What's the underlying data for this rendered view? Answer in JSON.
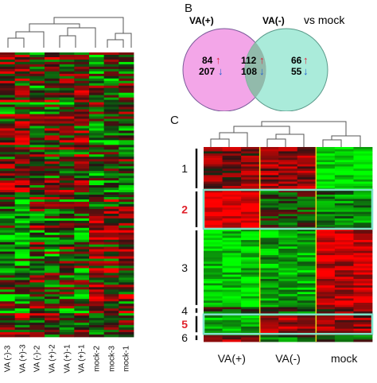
{
  "panel_b": {
    "label": "B",
    "set_left": "VA(+)",
    "set_right": "VA(-)",
    "suffix": "vs mock",
    "left_only": {
      "up": "84",
      "down": "207"
    },
    "overlap": {
      "up": "112",
      "down": "108"
    },
    "right_only": {
      "up": "66",
      "down": "55"
    },
    "colors": {
      "left": "#f3a6e8",
      "right": "#9be8d3",
      "overlap": "#8fb6a6",
      "up": "#e0203a",
      "down": "#1f5fd0"
    }
  },
  "panel_c": {
    "label": "C",
    "clusters": [
      "1",
      "2",
      "3",
      "4",
      "5",
      "6"
    ],
    "highlight_clusters": [
      "2",
      "5"
    ],
    "groups": [
      "VA(+)",
      "VA(-)",
      "mock"
    ],
    "colors": {
      "box": "#7fe3c9",
      "divider": "#e8d21a",
      "highlight_text": "#e0202a"
    }
  },
  "panel_a": {
    "samples": [
      "VA (-)-3",
      "VA (+)-3",
      "VA (-)-2",
      "VA (+)-2",
      "VA (+)-1",
      "VA (+)-1",
      "mock-2",
      "mock-3",
      "mock-1"
    ]
  }
}
